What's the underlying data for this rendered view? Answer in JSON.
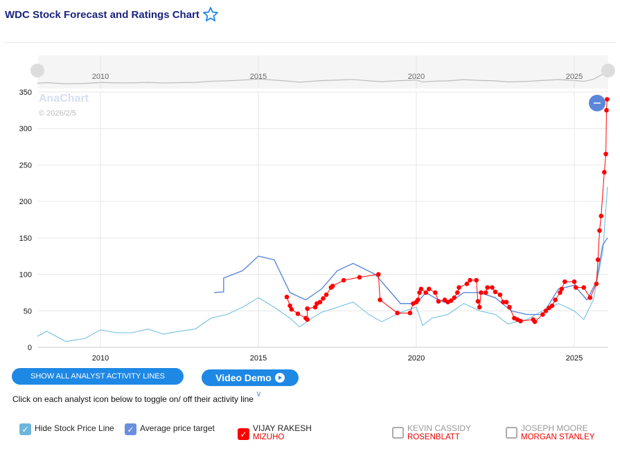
{
  "header": {
    "title": "WDC Stock Forecast and Ratings Chart",
    "favorite_icon": "star-outline-icon"
  },
  "buttons": {
    "show_all": "SHOW ALL ANALYST ACTIVITY LINES",
    "video_demo": "Video Demo"
  },
  "hint": "Click on each analyst icon below to toggle on/ off their activity line",
  "legend": {
    "hide_price": {
      "label": "Hide Stock Price Line",
      "checked": true
    },
    "avg_target": {
      "label": "Average price target",
      "checked": true
    },
    "analysts": [
      {
        "name": "VIJAY RAKESH",
        "firm": "MIZUHO",
        "checked": true
      },
      {
        "name": "KEVIN CASSIDY",
        "firm": "ROSENBLATT",
        "checked": false
      },
      {
        "name": "JOSEPH MOORE",
        "firm": "MORGAN STANLEY",
        "checked": false
      }
    ]
  },
  "watermark": {
    "brand": "AnaChart",
    "date": "© 2026/2/5"
  },
  "colors": {
    "price": "#7ec4e0",
    "avg": "#5b86d9",
    "analyst": "#ff0000",
    "button": "#1e88e5"
  },
  "chart_data": {
    "type": "line",
    "xlim": [
      2008.0,
      2026.1
    ],
    "ylim": [
      0,
      350
    ],
    "xticks": [
      "2010",
      "2015",
      "2020",
      "2025"
    ],
    "yticks": [
      "0",
      "50",
      "100",
      "150",
      "200",
      "250",
      "300",
      "350"
    ],
    "grid": true,
    "series": [
      {
        "name": "Stock Price",
        "points": [
          [
            2008.0,
            15
          ],
          [
            2008.3,
            22
          ],
          [
            2008.9,
            8
          ],
          [
            2009.5,
            12
          ],
          [
            2010,
            24
          ],
          [
            2010.5,
            20
          ],
          [
            2011,
            20
          ],
          [
            2011.5,
            25
          ],
          [
            2012,
            18
          ],
          [
            2012.5,
            22
          ],
          [
            2013,
            25
          ],
          [
            2013.5,
            40
          ],
          [
            2014,
            45
          ],
          [
            2014.5,
            55
          ],
          [
            2015,
            68
          ],
          [
            2015.5,
            55
          ],
          [
            2016,
            40
          ],
          [
            2016.3,
            28
          ],
          [
            2016.7,
            40
          ],
          [
            2017,
            48
          ],
          [
            2017.5,
            55
          ],
          [
            2018,
            62
          ],
          [
            2018.5,
            45
          ],
          [
            2018.9,
            35
          ],
          [
            2019.5,
            48
          ],
          [
            2020,
            55
          ],
          [
            2020.2,
            30
          ],
          [
            2020.5,
            40
          ],
          [
            2021,
            45
          ],
          [
            2021.5,
            60
          ],
          [
            2022,
            50
          ],
          [
            2022.5,
            45
          ],
          [
            2022.9,
            32
          ],
          [
            2023.5,
            38
          ],
          [
            2024,
            50
          ],
          [
            2024.5,
            60
          ],
          [
            2025,
            50
          ],
          [
            2025.3,
            38
          ],
          [
            2025.6,
            65
          ],
          [
            2025.9,
            130
          ],
          [
            2026.05,
            220
          ]
        ]
      },
      {
        "name": "Average price target",
        "points": [
          [
            2013.6,
            75
          ],
          [
            2013.9,
            76
          ],
          [
            2013.9,
            95
          ],
          [
            2014.5,
            105
          ],
          [
            2015.0,
            125
          ],
          [
            2015.5,
            120
          ],
          [
            2016.0,
            75
          ],
          [
            2016.5,
            65
          ],
          [
            2017.0,
            80
          ],
          [
            2017.5,
            105
          ],
          [
            2018.0,
            115
          ],
          [
            2018.7,
            100
          ],
          [
            2019.0,
            85
          ],
          [
            2019.5,
            60
          ],
          [
            2020.0,
            60
          ],
          [
            2020.3,
            75
          ],
          [
            2020.7,
            65
          ],
          [
            2021.0,
            60
          ],
          [
            2021.5,
            75
          ],
          [
            2022.0,
            75
          ],
          [
            2022.5,
            68
          ],
          [
            2023.0,
            50
          ],
          [
            2023.5,
            45
          ],
          [
            2024.0,
            45
          ],
          [
            2024.5,
            80
          ],
          [
            2025.0,
            85
          ],
          [
            2025.4,
            65
          ],
          [
            2025.7,
            90
          ],
          [
            2025.9,
            140
          ],
          [
            2026.05,
            150
          ]
        ]
      },
      {
        "name": "VIJAY RAKESH (MIZUHO)",
        "points": [
          [
            2015.9,
            69
          ],
          [
            2016.0,
            57
          ],
          [
            2016.05,
            52
          ],
          [
            2016.25,
            46
          ],
          [
            2016.5,
            40
          ],
          [
            2016.55,
            38
          ],
          [
            2016.55,
            53
          ],
          [
            2016.8,
            55
          ],
          [
            2016.85,
            60
          ],
          [
            2016.95,
            62
          ],
          [
            2017.05,
            67
          ],
          [
            2017.15,
            72
          ],
          [
            2017.3,
            82
          ],
          [
            2017.35,
            84
          ],
          [
            2017.7,
            92
          ],
          [
            2018.2,
            96
          ],
          [
            2018.8,
            100
          ],
          [
            2018.85,
            65
          ],
          [
            2019.4,
            47
          ],
          [
            2019.8,
            47
          ],
          [
            2019.9,
            60
          ],
          [
            2020.0,
            62
          ],
          [
            2020.05,
            65
          ],
          [
            2020.1,
            75
          ],
          [
            2020.15,
            80
          ],
          [
            2020.3,
            75
          ],
          [
            2020.4,
            80
          ],
          [
            2020.6,
            75
          ],
          [
            2020.7,
            63
          ],
          [
            2020.9,
            65
          ],
          [
            2021.0,
            62
          ],
          [
            2021.1,
            64
          ],
          [
            2021.2,
            68
          ],
          [
            2021.3,
            75
          ],
          [
            2021.35,
            82
          ],
          [
            2021.6,
            87
          ],
          [
            2021.7,
            92
          ],
          [
            2021.9,
            92
          ],
          [
            2021.95,
            63
          ],
          [
            2022.0,
            55
          ],
          [
            2022.05,
            75
          ],
          [
            2022.2,
            75
          ],
          [
            2022.25,
            82
          ],
          [
            2022.4,
            82
          ],
          [
            2022.5,
            76
          ],
          [
            2022.65,
            72
          ],
          [
            2022.75,
            62
          ],
          [
            2022.85,
            62
          ],
          [
            2022.95,
            55
          ],
          [
            2023.1,
            40
          ],
          [
            2023.2,
            38
          ],
          [
            2023.3,
            36
          ],
          [
            2023.7,
            38
          ],
          [
            2023.75,
            35
          ],
          [
            2024.0,
            45
          ],
          [
            2024.1,
            50
          ],
          [
            2024.2,
            54
          ],
          [
            2024.3,
            57
          ],
          [
            2024.4,
            65
          ],
          [
            2024.55,
            75
          ],
          [
            2024.6,
            80
          ],
          [
            2024.7,
            90
          ],
          [
            2025.0,
            90
          ],
          [
            2025.05,
            82
          ],
          [
            2025.3,
            82
          ],
          [
            2025.5,
            68
          ],
          [
            2025.7,
            87
          ],
          [
            2025.75,
            120
          ],
          [
            2025.8,
            160
          ],
          [
            2025.85,
            180
          ],
          [
            2025.95,
            240
          ],
          [
            2026.0,
            265
          ],
          [
            2026.02,
            325
          ],
          [
            2026.04,
            340
          ]
        ]
      }
    ]
  }
}
